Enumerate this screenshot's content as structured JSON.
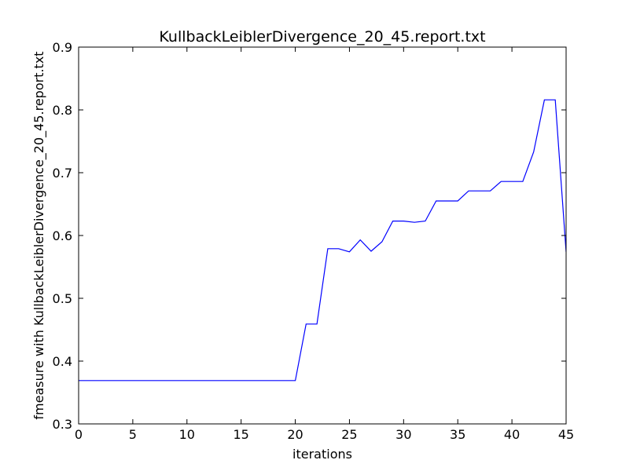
{
  "chart_data": {
    "type": "line",
    "title": "KullbackLeiblerDivergence_20_45.report.txt",
    "xlabel": "iterations",
    "ylabel": "fmeasure with KullbackLeiblerDivergence_20_45.report.txt",
    "xlim": [
      0,
      45
    ],
    "ylim": [
      0.3,
      0.9
    ],
    "xticks": [
      0,
      5,
      10,
      15,
      20,
      25,
      30,
      35,
      40,
      45
    ],
    "yticks": [
      0.3,
      0.4,
      0.5,
      0.6,
      0.7,
      0.8,
      0.9
    ],
    "grid": false,
    "line_color": "#0000ff",
    "series": [
      {
        "x": [
          0,
          20,
          21,
          22,
          23,
          24,
          25,
          26,
          27,
          28,
          29,
          30,
          31,
          32,
          33,
          34,
          35,
          36,
          37,
          38,
          39,
          40,
          41,
          42,
          43,
          44,
          45
        ],
        "y": [
          0.369,
          0.369,
          0.459,
          0.459,
          0.579,
          0.579,
          0.574,
          0.593,
          0.575,
          0.59,
          0.623,
          0.623,
          0.621,
          0.623,
          0.655,
          0.655,
          0.655,
          0.671,
          0.671,
          0.671,
          0.686,
          0.686,
          0.686,
          0.733,
          0.816,
          0.816,
          0.574
        ]
      }
    ]
  }
}
